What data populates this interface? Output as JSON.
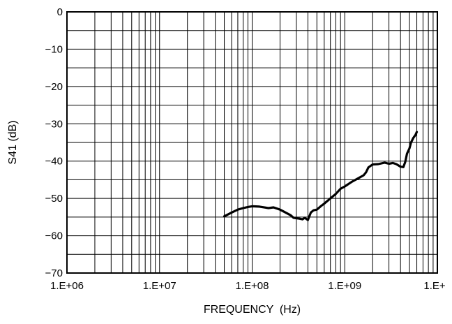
{
  "chart_data": {
    "type": "line",
    "title": "",
    "xlabel": "FREQUENCY  (Hz)",
    "ylabel": "S41 (dB)",
    "x_scale": "log",
    "xlim": [
      1000000,
      10000000000
    ],
    "ylim": [
      -70,
      0
    ],
    "grid": true,
    "x_tick_values": [
      1000000,
      10000000,
      100000000,
      1000000000,
      10000000000
    ],
    "x_tick_labels": [
      "1.E+06",
      "1.E+07",
      "1.E+08",
      "1.E+09",
      "1.E+"
    ],
    "y_tick_values": [
      0,
      -10,
      -20,
      -30,
      -40,
      -50,
      -60,
      -70
    ],
    "y_tick_labels": [
      "0",
      "−10",
      "−20",
      "−30",
      "−40",
      "−50",
      "−60",
      "−70"
    ],
    "series": [
      {
        "color": "#000000",
        "x": [
          50000000,
          60000000,
          70000000,
          80000000,
          90000000,
          100000000,
          120000000,
          150000000,
          170000000,
          200000000,
          230000000,
          260000000,
          280000000,
          300000000,
          320000000,
          350000000,
          370000000,
          400000000,
          430000000,
          460000000,
          500000000,
          550000000,
          600000000,
          700000000,
          800000000,
          900000000,
          1000000000,
          1200000000,
          1400000000,
          1600000000,
          1700000000,
          1800000000,
          2000000000,
          2300000000,
          2700000000,
          3000000000,
          3300000000,
          3600000000,
          4000000000,
          4300000000,
          4500000000,
          4700000000,
          5000000000,
          5200000000,
          5500000000,
          5800000000,
          6000000000
        ],
        "y": [
          -54.8,
          -53.8,
          -53.0,
          -52.6,
          -52.3,
          -52.1,
          -52.2,
          -52.6,
          -52.4,
          -53.0,
          -53.8,
          -54.5,
          -55.2,
          -55.3,
          -55.4,
          -55.6,
          -55.2,
          -55.8,
          -53.8,
          -53.2,
          -53.0,
          -52.1,
          -51.4,
          -50.0,
          -48.8,
          -47.4,
          -46.8,
          -45.5,
          -44.6,
          -43.8,
          -43.0,
          -41.7,
          -40.9,
          -40.8,
          -40.4,
          -40.7,
          -40.5,
          -40.8,
          -41.5,
          -41.6,
          -40.2,
          -38.0,
          -36.6,
          -35.0,
          -33.8,
          -33.0,
          -32.2
        ]
      }
    ]
  }
}
